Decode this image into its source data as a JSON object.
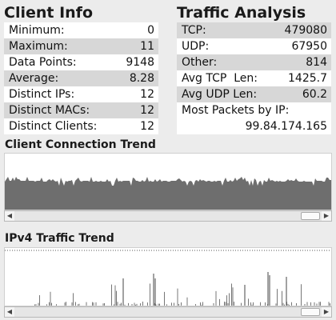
{
  "client_info": {
    "title": "Client Info",
    "rows": [
      {
        "label": "Minimum:",
        "value": "0"
      },
      {
        "label": "Maximum:",
        "value": "11"
      },
      {
        "label": "Data Points:",
        "value": "9148"
      },
      {
        "label": "Average:",
        "value": "8.28"
      },
      {
        "label": "Distinct IPs:",
        "value": "12"
      },
      {
        "label": "Distinct MACs:",
        "value": "12"
      },
      {
        "label": "Distinct Clients:",
        "value": "12"
      }
    ]
  },
  "traffic_analysis": {
    "title": "Traffic Analysis",
    "rows": [
      {
        "label": "TCP:",
        "value": "479080"
      },
      {
        "label": "UDP:",
        "value": "67950"
      },
      {
        "label": "Other:",
        "value": "814"
      },
      {
        "label": "Avg TCP  Len:",
        "value": "1425.7"
      },
      {
        "label": "Avg UDP Len:",
        "value": "60.2"
      }
    ],
    "most_packets_label": "Most Packets by IP:",
    "most_packets_value": "99.84.174.165"
  },
  "client_trend": {
    "title": "Client Connection Trend",
    "scroll_position": 0.97
  },
  "ipv4_trend": {
    "title": "IPv4 Traffic Trend",
    "scroll_position": 0.97
  },
  "icons": {
    "scroll_left": "◀",
    "scroll_right": "▶"
  }
}
